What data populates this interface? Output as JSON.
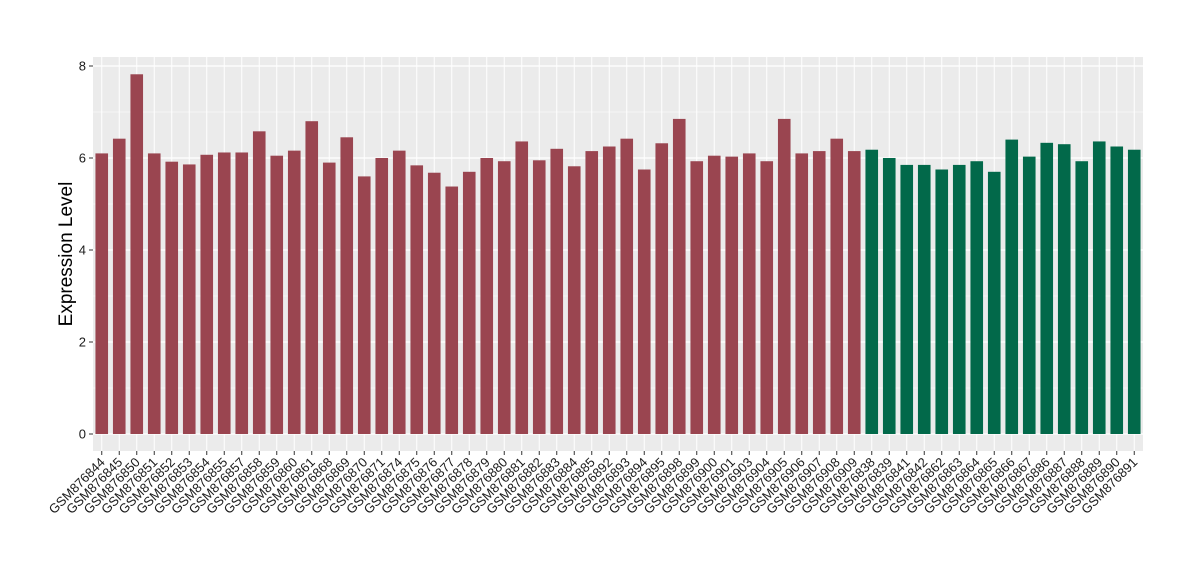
{
  "chart_data": {
    "type": "bar",
    "title": "",
    "xlabel": "",
    "ylabel": "Expression Level",
    "ylim": [
      0,
      8.2
    ],
    "yticks": [
      0,
      2,
      4,
      6,
      8
    ],
    "grid": true,
    "legend": "none",
    "categories": [
      "GSM876844",
      "GSM876845",
      "GSM876850",
      "GSM876851",
      "GSM876852",
      "GSM876853",
      "GSM876854",
      "GSM876855",
      "GSM876857",
      "GSM876858",
      "GSM876859",
      "GSM876860",
      "GSM876861",
      "GSM876868",
      "GSM876869",
      "GSM876870",
      "GSM876871",
      "GSM876874",
      "GSM876875",
      "GSM876876",
      "GSM876877",
      "GSM876878",
      "GSM876879",
      "GSM876880",
      "GSM876881",
      "GSM876882",
      "GSM876883",
      "GSM876884",
      "GSM876885",
      "GSM876892",
      "GSM876893",
      "GSM876894",
      "GSM876895",
      "GSM876898",
      "GSM876899",
      "GSM876900",
      "GSM876901",
      "GSM876903",
      "GSM876904",
      "GSM876905",
      "GSM876906",
      "GSM876907",
      "GSM876908",
      "GSM876909",
      "GSM876838",
      "GSM876839",
      "GSM876841",
      "GSM876842",
      "GSM876862",
      "GSM876863",
      "GSM876864",
      "GSM876865",
      "GSM876866",
      "GSM876867",
      "GSM876886",
      "GSM876887",
      "GSM876888",
      "GSM876889",
      "GSM876890",
      "GSM876891"
    ],
    "values": [
      6.1,
      6.42,
      7.82,
      6.1,
      5.92,
      5.86,
      6.07,
      6.12,
      6.12,
      6.58,
      6.05,
      6.16,
      6.8,
      5.9,
      6.45,
      5.6,
      6.0,
      6.16,
      5.84,
      5.68,
      5.38,
      5.7,
      6.0,
      5.93,
      6.36,
      5.95,
      6.2,
      5.82,
      6.15,
      6.25,
      6.42,
      5.75,
      6.32,
      6.85,
      5.93,
      6.05,
      6.03,
      6.1,
      5.93,
      6.85,
      6.1,
      6.15,
      6.42,
      6.15,
      6.18,
      6.0,
      5.85,
      5.85,
      5.75,
      5.85,
      5.93,
      5.7,
      6.4,
      6.03,
      6.33,
      6.3,
      5.93,
      6.36,
      6.25,
      6.18
    ],
    "groups": [
      {
        "count": 44,
        "color": "#9a4550"
      },
      {
        "count": 16,
        "color": "#02694a"
      }
    ]
  },
  "style": {
    "panel_background": "#ebebeb",
    "gridline_color": "#ffffff",
    "tick_color": "#333333"
  }
}
